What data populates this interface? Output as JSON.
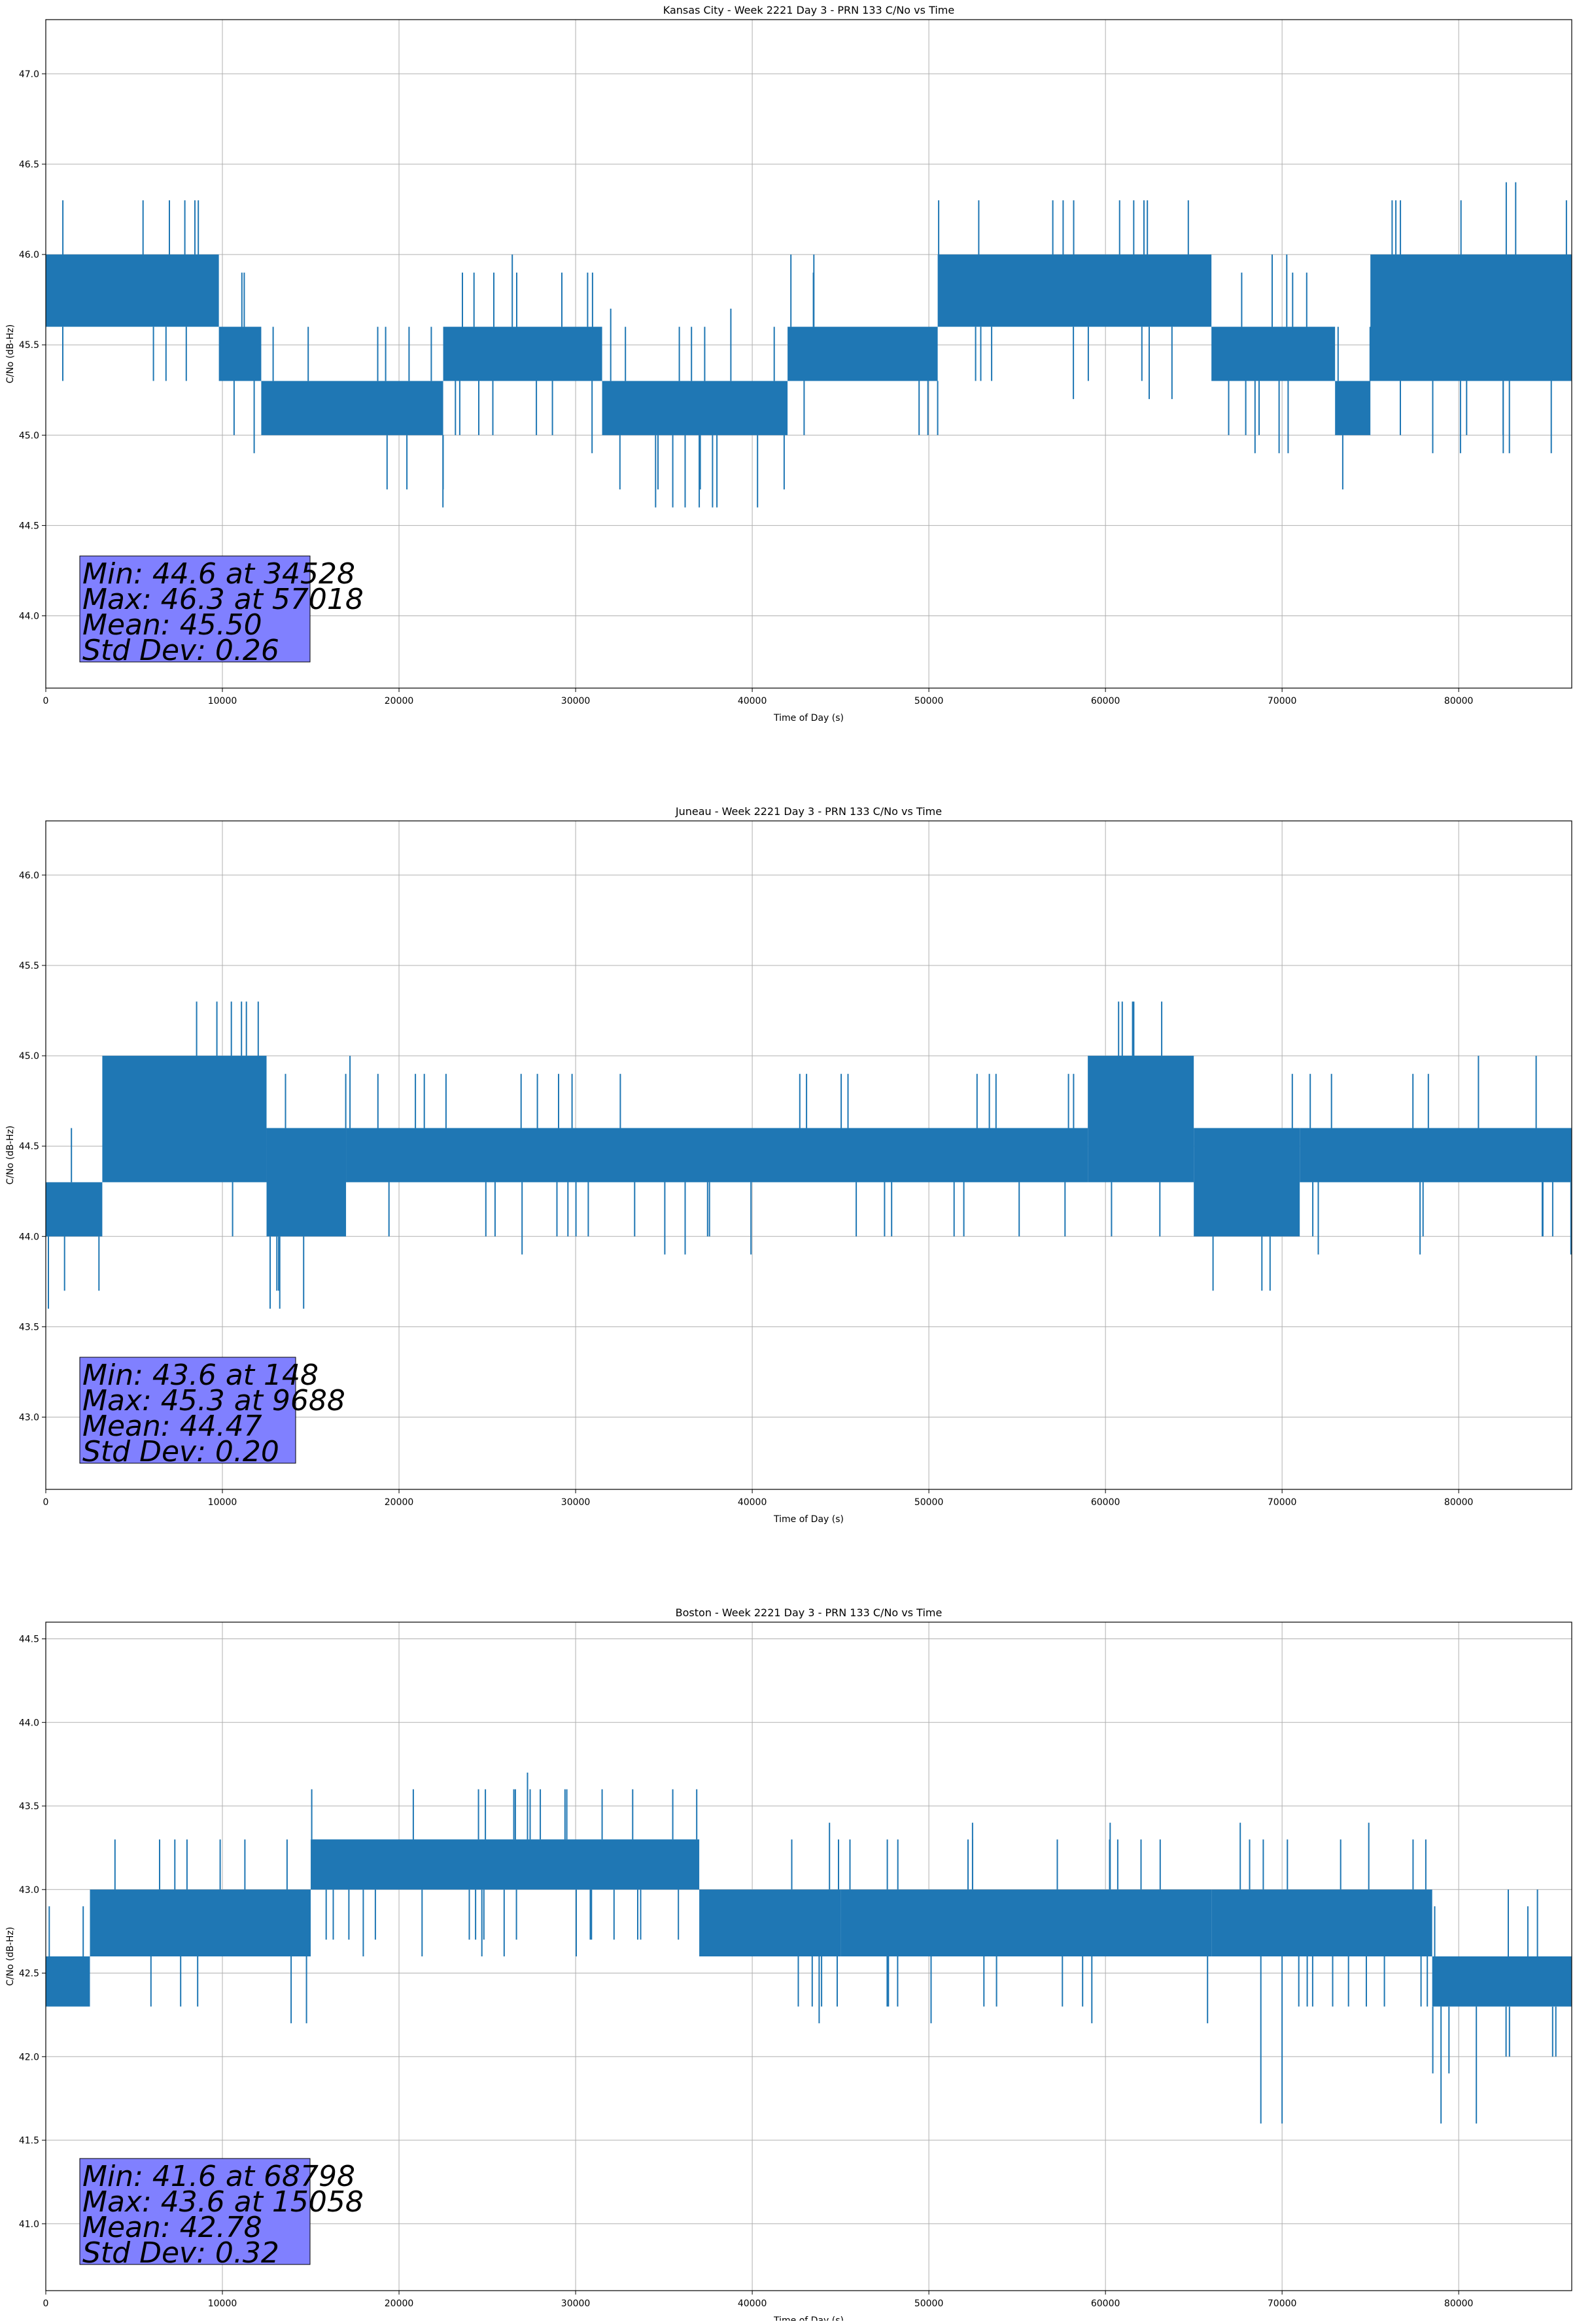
{
  "chart_data": [
    {
      "type": "line",
      "title": "Kansas City - Week 2221 Day 3 - PRN 133 C/No vs Time",
      "xlabel": "Time of Day (s)",
      "ylabel": "C/No (dB-Hz)",
      "xlim": [
        0,
        86400
      ],
      "ylim": [
        43.6,
        47.3
      ],
      "xticks": [
        0,
        10000,
        20000,
        30000,
        40000,
        50000,
        60000,
        70000,
        80000
      ],
      "xtick_labels": [
        "0",
        "10000",
        "20000",
        "30000",
        "40000",
        "50000",
        "60000",
        "70000",
        "80000"
      ],
      "yticks": [
        44.0,
        44.5,
        45.0,
        45.5,
        46.0,
        46.5,
        47.0
      ],
      "ytick_labels": [
        "44.0",
        "44.5",
        "45.0",
        "45.5",
        "46.0",
        "46.5",
        "47.0"
      ],
      "grid": true,
      "color": "#1f77b4",
      "segments": [
        {
          "x0": 0,
          "x1": 9800,
          "lo": 45.6,
          "hi": 46.0
        },
        {
          "x0": 9800,
          "x1": 12200,
          "lo": 45.3,
          "hi": 45.6
        },
        {
          "x0": 12200,
          "x1": 22500,
          "lo": 45.0,
          "hi": 45.3
        },
        {
          "x0": 22500,
          "x1": 31500,
          "lo": 45.3,
          "hi": 45.6
        },
        {
          "x0": 31500,
          "x1": 42000,
          "lo": 45.0,
          "hi": 45.3
        },
        {
          "x0": 42000,
          "x1": 50500,
          "lo": 45.3,
          "hi": 45.6
        },
        {
          "x0": 50500,
          "x1": 66000,
          "lo": 45.6,
          "hi": 46.0
        },
        {
          "x0": 66000,
          "x1": 73000,
          "lo": 45.3,
          "hi": 45.6
        },
        {
          "x0": 73000,
          "x1": 75000,
          "lo": 45.0,
          "hi": 45.3
        },
        {
          "x0": 75000,
          "x1": 86400,
          "lo": 45.3,
          "hi": 46.0
        }
      ],
      "spikes": [
        {
          "x": 34528,
          "y": 44.6
        },
        {
          "x": 35500,
          "y": 44.6
        },
        {
          "x": 36200,
          "y": 44.6
        },
        {
          "x": 37000,
          "y": 44.6
        },
        {
          "x": 38000,
          "y": 44.6
        },
        {
          "x": 40300,
          "y": 44.6
        },
        {
          "x": 57018,
          "y": 46.3
        },
        {
          "x": 58200,
          "y": 46.3
        },
        {
          "x": 60800,
          "y": 46.3
        },
        {
          "x": 61600,
          "y": 46.3
        },
        {
          "x": 76700,
          "y": 46.3
        }
      ],
      "stats": {
        "min": "Min: 44.6 at 34528",
        "max": "Max: 46.3 at 57018",
        "mean": "Mean: 45.50",
        "std": "Std Dev: 0.26"
      }
    },
    {
      "type": "line",
      "title": "Juneau - Week 2221 Day 3 - PRN 133 C/No vs Time",
      "xlabel": "Time of Day (s)",
      "ylabel": "C/No (dB-Hz)",
      "xlim": [
        0,
        86400
      ],
      "ylim": [
        42.6,
        46.3
      ],
      "xticks": [
        0,
        10000,
        20000,
        30000,
        40000,
        50000,
        60000,
        70000,
        80000
      ],
      "xtick_labels": [
        "0",
        "10000",
        "20000",
        "30000",
        "40000",
        "50000",
        "60000",
        "70000",
        "80000"
      ],
      "yticks": [
        43.0,
        43.5,
        44.0,
        44.5,
        45.0,
        45.5,
        46.0
      ],
      "ytick_labels": [
        "43.0",
        "43.5",
        "44.0",
        "44.5",
        "45.0",
        "45.5",
        "46.0"
      ],
      "grid": true,
      "color": "#1f77b4",
      "segments": [
        {
          "x0": 0,
          "x1": 3200,
          "lo": 44.0,
          "hi": 44.3
        },
        {
          "x0": 3200,
          "x1": 12500,
          "lo": 44.3,
          "hi": 45.0
        },
        {
          "x0": 12500,
          "x1": 17000,
          "lo": 44.0,
          "hi": 44.6
        },
        {
          "x0": 17000,
          "x1": 59000,
          "lo": 44.3,
          "hi": 44.6
        },
        {
          "x0": 59000,
          "x1": 65000,
          "lo": 44.3,
          "hi": 45.0
        },
        {
          "x0": 65000,
          "x1": 71000,
          "lo": 44.0,
          "hi": 44.6
        },
        {
          "x0": 71000,
          "x1": 86400,
          "lo": 44.3,
          "hi": 44.6
        }
      ],
      "spikes": [
        {
          "x": 148,
          "y": 43.6
        },
        {
          "x": 9688,
          "y": 45.3
        },
        {
          "x": 14600,
          "y": 43.6
        }
      ],
      "stats": {
        "min": "Min: 43.6 at 148",
        "max": "Max: 45.3 at 9688",
        "mean": "Mean: 44.47",
        "std": "Std Dev: 0.20"
      }
    },
    {
      "type": "line",
      "title": "Boston - Week 2221 Day 3 - PRN 133 C/No vs Time",
      "xlabel": "Time of Day (s)",
      "ylabel": "C/No (dB-Hz)",
      "xlim": [
        0,
        86400
      ],
      "ylim": [
        40.6,
        44.6
      ],
      "xticks": [
        0,
        10000,
        20000,
        30000,
        40000,
        50000,
        60000,
        70000,
        80000
      ],
      "xtick_labels": [
        "0",
        "10000",
        "20000",
        "30000",
        "40000",
        "50000",
        "60000",
        "70000",
        "80000"
      ],
      "yticks": [
        41.0,
        41.5,
        42.0,
        42.5,
        43.0,
        43.5,
        44.0,
        44.5
      ],
      "ytick_labels": [
        "41.0",
        "41.5",
        "42.0",
        "42.5",
        "43.0",
        "43.5",
        "44.0",
        "44.5"
      ],
      "grid": true,
      "color": "#1f77b4",
      "segments": [
        {
          "x0": 0,
          "x1": 2500,
          "lo": 42.3,
          "hi": 42.6
        },
        {
          "x0": 2500,
          "x1": 15000,
          "lo": 42.6,
          "hi": 43.0
        },
        {
          "x0": 15000,
          "x1": 37000,
          "lo": 43.0,
          "hi": 43.3
        },
        {
          "x0": 37000,
          "x1": 45000,
          "lo": 42.6,
          "hi": 43.0
        },
        {
          "x0": 45000,
          "x1": 66000,
          "lo": 42.6,
          "hi": 43.0
        },
        {
          "x0": 66000,
          "x1": 78500,
          "lo": 42.6,
          "hi": 43.0
        },
        {
          "x0": 78500,
          "x1": 86400,
          "lo": 42.3,
          "hi": 42.6
        }
      ],
      "spikes": [
        {
          "x": 15058,
          "y": 43.6
        },
        {
          "x": 24500,
          "y": 43.6
        },
        {
          "x": 26500,
          "y": 43.6
        },
        {
          "x": 28000,
          "y": 43.6
        },
        {
          "x": 29500,
          "y": 43.6
        },
        {
          "x": 31500,
          "y": 43.6
        },
        {
          "x": 35500,
          "y": 43.6
        },
        {
          "x": 68798,
          "y": 41.6
        },
        {
          "x": 70000,
          "y": 41.6
        },
        {
          "x": 79000,
          "y": 41.6
        },
        {
          "x": 81000,
          "y": 41.6
        }
      ],
      "stats": {
        "min": "Min: 41.6 at 68798",
        "max": "Max: 43.6 at 15058",
        "mean": "Mean: 42.78",
        "std": "Std Dev: 0.32"
      }
    }
  ]
}
